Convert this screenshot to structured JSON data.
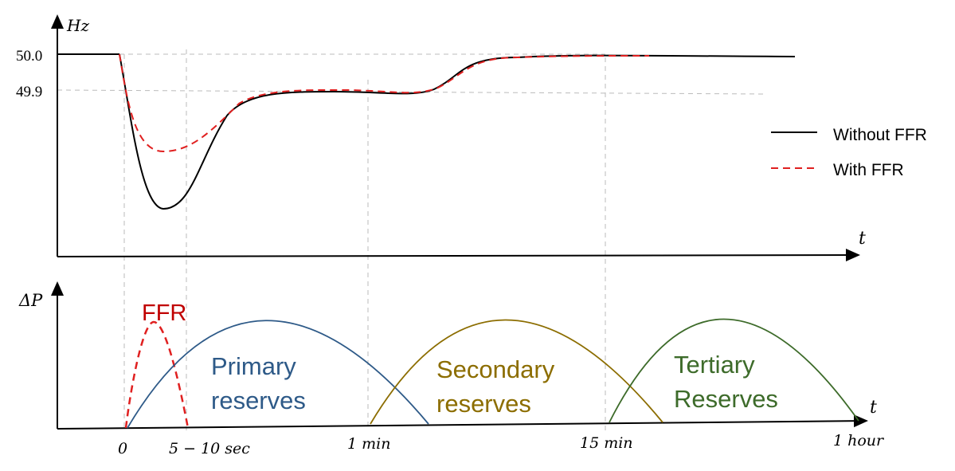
{
  "top_panel": {
    "y_axis_label": "Hz",
    "x_axis_label": "t",
    "y_ticks": [
      "50.0",
      "49.9"
    ],
    "legend": {
      "without": "Without FFR",
      "with": "With FFR",
      "colors": {
        "without": "#000000",
        "with": "#e02020"
      }
    }
  },
  "bottom_panel": {
    "y_axis_label": "ΔP",
    "x_axis_label": "t",
    "reserves": [
      {
        "lines": [
          "FFR"
        ],
        "color": "#c00000"
      },
      {
        "lines": [
          "Primary",
          "reserves"
        ],
        "color": "#2e5a88"
      },
      {
        "lines": [
          "Secondary",
          "reserves"
        ],
        "color": "#8c6d00"
      },
      {
        "lines": [
          "Tertiary",
          "Reserves"
        ],
        "color": "#3d6b2a"
      }
    ]
  },
  "time_labels": [
    "0",
    "5 − 10 sec",
    "1 min",
    "15 min",
    "1 hour"
  ]
}
